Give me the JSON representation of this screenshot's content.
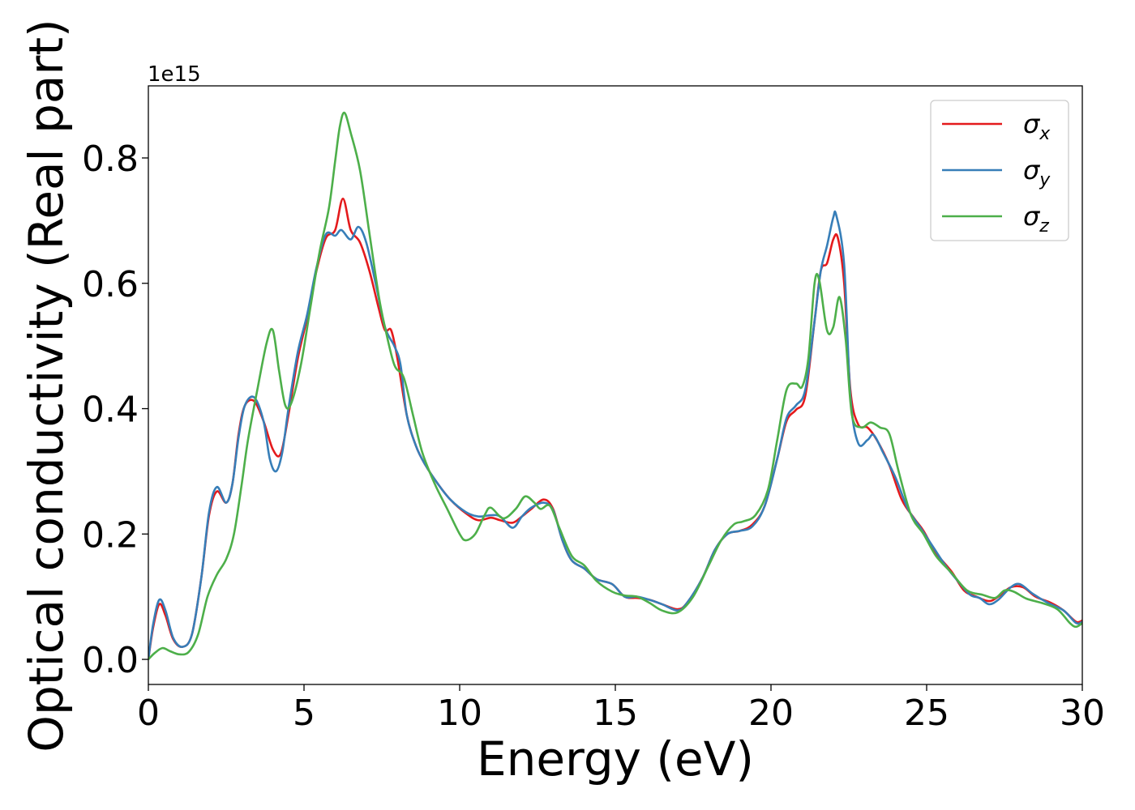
{
  "chart_data": {
    "type": "line",
    "title": "",
    "xlabel": "Energy (eV)",
    "ylabel": "Optical conductivity (Real part)",
    "y_offset_text": "1e15",
    "xlim": [
      0,
      30
    ],
    "ylim": [
      -0.04,
      0.915
    ],
    "x_ticks": [
      0,
      5,
      10,
      15,
      20,
      25,
      30
    ],
    "x_tick_labels": [
      "0",
      "5",
      "10",
      "15",
      "20",
      "25",
      "30"
    ],
    "y_ticks": [
      0.0,
      0.2,
      0.4,
      0.6,
      0.8
    ],
    "y_tick_labels": [
      "0.0",
      "0.2",
      "0.4",
      "0.6",
      "0.8"
    ],
    "grid": false,
    "legend_position": "top-right",
    "series": [
      {
        "name": "σx",
        "subscript": "x",
        "color": "#e41a1c",
        "points": [
          [
            0,
            0
          ],
          [
            0.15,
            0.05
          ],
          [
            0.35,
            0.088
          ],
          [
            0.55,
            0.07
          ],
          [
            0.8,
            0.032
          ],
          [
            1.1,
            0.02
          ],
          [
            1.4,
            0.04
          ],
          [
            1.7,
            0.13
          ],
          [
            1.95,
            0.23
          ],
          [
            2.2,
            0.268
          ],
          [
            2.5,
            0.25
          ],
          [
            2.7,
            0.28
          ],
          [
            2.9,
            0.36
          ],
          [
            3.1,
            0.405
          ],
          [
            3.4,
            0.412
          ],
          [
            3.7,
            0.38
          ],
          [
            4.0,
            0.335
          ],
          [
            4.25,
            0.328
          ],
          [
            4.5,
            0.39
          ],
          [
            4.8,
            0.48
          ],
          [
            5.1,
            0.545
          ],
          [
            5.4,
            0.62
          ],
          [
            5.7,
            0.672
          ],
          [
            6.0,
            0.685
          ],
          [
            6.25,
            0.735
          ],
          [
            6.5,
            0.685
          ],
          [
            6.8,
            0.665
          ],
          [
            7.1,
            0.62
          ],
          [
            7.4,
            0.56
          ],
          [
            7.6,
            0.525
          ],
          [
            7.8,
            0.525
          ],
          [
            8.0,
            0.48
          ],
          [
            8.3,
            0.39
          ],
          [
            8.6,
            0.34
          ],
          [
            8.9,
            0.31
          ],
          [
            9.3,
            0.28
          ],
          [
            9.7,
            0.255
          ],
          [
            10.2,
            0.233
          ],
          [
            10.6,
            0.222
          ],
          [
            11.0,
            0.226
          ],
          [
            11.3,
            0.222
          ],
          [
            11.7,
            0.218
          ],
          [
            12.0,
            0.228
          ],
          [
            12.3,
            0.24
          ],
          [
            12.7,
            0.255
          ],
          [
            13.0,
            0.24
          ],
          [
            13.3,
            0.19
          ],
          [
            13.6,
            0.158
          ],
          [
            14.0,
            0.145
          ],
          [
            14.4,
            0.128
          ],
          [
            14.9,
            0.12
          ],
          [
            15.3,
            0.1
          ],
          [
            15.7,
            0.098
          ],
          [
            16.1,
            0.095
          ],
          [
            16.5,
            0.088
          ],
          [
            17.0,
            0.08
          ],
          [
            17.3,
            0.09
          ],
          [
            17.8,
            0.13
          ],
          [
            18.2,
            0.175
          ],
          [
            18.6,
            0.2
          ],
          [
            19.0,
            0.205
          ],
          [
            19.4,
            0.215
          ],
          [
            19.8,
            0.245
          ],
          [
            20.2,
            0.32
          ],
          [
            20.5,
            0.38
          ],
          [
            20.8,
            0.398
          ],
          [
            21.1,
            0.42
          ],
          [
            21.4,
            0.54
          ],
          [
            21.6,
            0.62
          ],
          [
            21.8,
            0.632
          ],
          [
            22.0,
            0.67
          ],
          [
            22.15,
            0.672
          ],
          [
            22.35,
            0.6
          ],
          [
            22.55,
            0.43
          ],
          [
            22.8,
            0.375
          ],
          [
            23.1,
            0.37
          ],
          [
            23.4,
            0.35
          ],
          [
            23.8,
            0.31
          ],
          [
            24.2,
            0.255
          ],
          [
            24.6,
            0.225
          ],
          [
            24.9,
            0.205
          ],
          [
            25.3,
            0.17
          ],
          [
            25.8,
            0.14
          ],
          [
            26.2,
            0.11
          ],
          [
            26.6,
            0.1
          ],
          [
            27.0,
            0.093
          ],
          [
            27.3,
            0.1
          ],
          [
            27.7,
            0.115
          ],
          [
            28.1,
            0.115
          ],
          [
            28.5,
            0.1
          ],
          [
            29.0,
            0.09
          ],
          [
            29.4,
            0.078
          ],
          [
            29.8,
            0.06
          ],
          [
            30.0,
            0.062
          ]
        ]
      },
      {
        "name": "σy",
        "subscript": "y",
        "color": "#377eb8",
        "points": [
          [
            0,
            0
          ],
          [
            0.15,
            0.055
          ],
          [
            0.35,
            0.095
          ],
          [
            0.55,
            0.078
          ],
          [
            0.8,
            0.034
          ],
          [
            1.1,
            0.02
          ],
          [
            1.4,
            0.04
          ],
          [
            1.7,
            0.13
          ],
          [
            1.95,
            0.235
          ],
          [
            2.2,
            0.275
          ],
          [
            2.5,
            0.25
          ],
          [
            2.7,
            0.28
          ],
          [
            2.9,
            0.355
          ],
          [
            3.1,
            0.405
          ],
          [
            3.4,
            0.418
          ],
          [
            3.7,
            0.38
          ],
          [
            3.9,
            0.32
          ],
          [
            4.1,
            0.3
          ],
          [
            4.3,
            0.33
          ],
          [
            4.5,
            0.4
          ],
          [
            4.8,
            0.49
          ],
          [
            5.1,
            0.55
          ],
          [
            5.4,
            0.625
          ],
          [
            5.7,
            0.678
          ],
          [
            6.0,
            0.676
          ],
          [
            6.2,
            0.685
          ],
          [
            6.5,
            0.67
          ],
          [
            6.75,
            0.69
          ],
          [
            7.0,
            0.665
          ],
          [
            7.3,
            0.6
          ],
          [
            7.6,
            0.53
          ],
          [
            7.9,
            0.5
          ],
          [
            8.1,
            0.47
          ],
          [
            8.3,
            0.39
          ],
          [
            8.6,
            0.34
          ],
          [
            8.9,
            0.31
          ],
          [
            9.3,
            0.28
          ],
          [
            9.7,
            0.255
          ],
          [
            10.2,
            0.235
          ],
          [
            10.6,
            0.228
          ],
          [
            11.0,
            0.23
          ],
          [
            11.3,
            0.228
          ],
          [
            11.7,
            0.21
          ],
          [
            12.0,
            0.228
          ],
          [
            12.3,
            0.242
          ],
          [
            12.7,
            0.25
          ],
          [
            13.0,
            0.238
          ],
          [
            13.3,
            0.19
          ],
          [
            13.6,
            0.158
          ],
          [
            14.0,
            0.145
          ],
          [
            14.4,
            0.128
          ],
          [
            14.9,
            0.12
          ],
          [
            15.3,
            0.1
          ],
          [
            15.7,
            0.1
          ],
          [
            16.1,
            0.095
          ],
          [
            16.5,
            0.088
          ],
          [
            17.0,
            0.078
          ],
          [
            17.3,
            0.09
          ],
          [
            17.8,
            0.13
          ],
          [
            18.2,
            0.175
          ],
          [
            18.6,
            0.2
          ],
          [
            19.0,
            0.205
          ],
          [
            19.4,
            0.212
          ],
          [
            19.8,
            0.245
          ],
          [
            20.2,
            0.32
          ],
          [
            20.5,
            0.385
          ],
          [
            20.8,
            0.405
          ],
          [
            21.1,
            0.43
          ],
          [
            21.4,
            0.54
          ],
          [
            21.6,
            0.62
          ],
          [
            21.8,
            0.66
          ],
          [
            22.0,
            0.705
          ],
          [
            22.1,
            0.708
          ],
          [
            22.35,
            0.63
          ],
          [
            22.55,
            0.42
          ],
          [
            22.8,
            0.345
          ],
          [
            23.1,
            0.35
          ],
          [
            23.3,
            0.358
          ],
          [
            23.6,
            0.33
          ],
          [
            24.0,
            0.29
          ],
          [
            24.4,
            0.24
          ],
          [
            24.8,
            0.21
          ],
          [
            25.2,
            0.18
          ],
          [
            25.6,
            0.15
          ],
          [
            26.0,
            0.125
          ],
          [
            26.4,
            0.103
          ],
          [
            26.7,
            0.098
          ],
          [
            27.0,
            0.088
          ],
          [
            27.3,
            0.095
          ],
          [
            27.7,
            0.115
          ],
          [
            28.0,
            0.12
          ],
          [
            28.4,
            0.105
          ],
          [
            28.9,
            0.09
          ],
          [
            29.4,
            0.078
          ],
          [
            29.8,
            0.058
          ],
          [
            30.0,
            0.06
          ]
        ]
      },
      {
        "name": "σz",
        "subscript": "z",
        "color": "#4daf4a",
        "points": [
          [
            0,
            0
          ],
          [
            0.2,
            0.01
          ],
          [
            0.45,
            0.018
          ],
          [
            0.7,
            0.013
          ],
          [
            1.0,
            0.008
          ],
          [
            1.3,
            0.012
          ],
          [
            1.6,
            0.04
          ],
          [
            1.9,
            0.1
          ],
          [
            2.2,
            0.135
          ],
          [
            2.5,
            0.16
          ],
          [
            2.75,
            0.2
          ],
          [
            3.0,
            0.28
          ],
          [
            3.2,
            0.35
          ],
          [
            3.5,
            0.43
          ],
          [
            3.8,
            0.505
          ],
          [
            4.0,
            0.525
          ],
          [
            4.2,
            0.46
          ],
          [
            4.4,
            0.405
          ],
          [
            4.6,
            0.41
          ],
          [
            4.9,
            0.47
          ],
          [
            5.2,
            0.56
          ],
          [
            5.5,
            0.65
          ],
          [
            5.8,
            0.72
          ],
          [
            6.0,
            0.795
          ],
          [
            6.15,
            0.85
          ],
          [
            6.3,
            0.872
          ],
          [
            6.5,
            0.84
          ],
          [
            6.8,
            0.78
          ],
          [
            7.1,
            0.68
          ],
          [
            7.4,
            0.58
          ],
          [
            7.6,
            0.53
          ],
          [
            7.9,
            0.47
          ],
          [
            8.2,
            0.45
          ],
          [
            8.5,
            0.39
          ],
          [
            8.8,
            0.33
          ],
          [
            9.2,
            0.28
          ],
          [
            9.6,
            0.24
          ],
          [
            10.0,
            0.2
          ],
          [
            10.2,
            0.19
          ],
          [
            10.5,
            0.2
          ],
          [
            10.8,
            0.23
          ],
          [
            11.0,
            0.242
          ],
          [
            11.4,
            0.225
          ],
          [
            11.8,
            0.24
          ],
          [
            12.1,
            0.26
          ],
          [
            12.4,
            0.25
          ],
          [
            12.6,
            0.24
          ],
          [
            12.9,
            0.245
          ],
          [
            13.2,
            0.21
          ],
          [
            13.6,
            0.165
          ],
          [
            14.0,
            0.15
          ],
          [
            14.4,
            0.125
          ],
          [
            14.9,
            0.108
          ],
          [
            15.3,
            0.102
          ],
          [
            15.7,
            0.1
          ],
          [
            16.1,
            0.09
          ],
          [
            16.5,
            0.078
          ],
          [
            17.0,
            0.075
          ],
          [
            17.5,
            0.1
          ],
          [
            18.0,
            0.15
          ],
          [
            18.4,
            0.19
          ],
          [
            18.8,
            0.215
          ],
          [
            19.1,
            0.22
          ],
          [
            19.5,
            0.23
          ],
          [
            19.9,
            0.27
          ],
          [
            20.2,
            0.35
          ],
          [
            20.5,
            0.43
          ],
          [
            20.8,
            0.44
          ],
          [
            21.0,
            0.435
          ],
          [
            21.2,
            0.48
          ],
          [
            21.4,
            0.6
          ],
          [
            21.55,
            0.605
          ],
          [
            21.8,
            0.525
          ],
          [
            22.0,
            0.53
          ],
          [
            22.2,
            0.578
          ],
          [
            22.4,
            0.51
          ],
          [
            22.6,
            0.39
          ],
          [
            22.9,
            0.37
          ],
          [
            23.2,
            0.378
          ],
          [
            23.5,
            0.37
          ],
          [
            23.8,
            0.36
          ],
          [
            24.1,
            0.3
          ],
          [
            24.5,
            0.23
          ],
          [
            24.9,
            0.2
          ],
          [
            25.3,
            0.165
          ],
          [
            25.8,
            0.138
          ],
          [
            26.3,
            0.11
          ],
          [
            26.8,
            0.103
          ],
          [
            27.2,
            0.098
          ],
          [
            27.5,
            0.11
          ],
          [
            27.8,
            0.108
          ],
          [
            28.2,
            0.097
          ],
          [
            28.7,
            0.09
          ],
          [
            29.2,
            0.08
          ],
          [
            29.6,
            0.058
          ],
          [
            29.8,
            0.052
          ],
          [
            30.0,
            0.058
          ]
        ]
      }
    ]
  }
}
